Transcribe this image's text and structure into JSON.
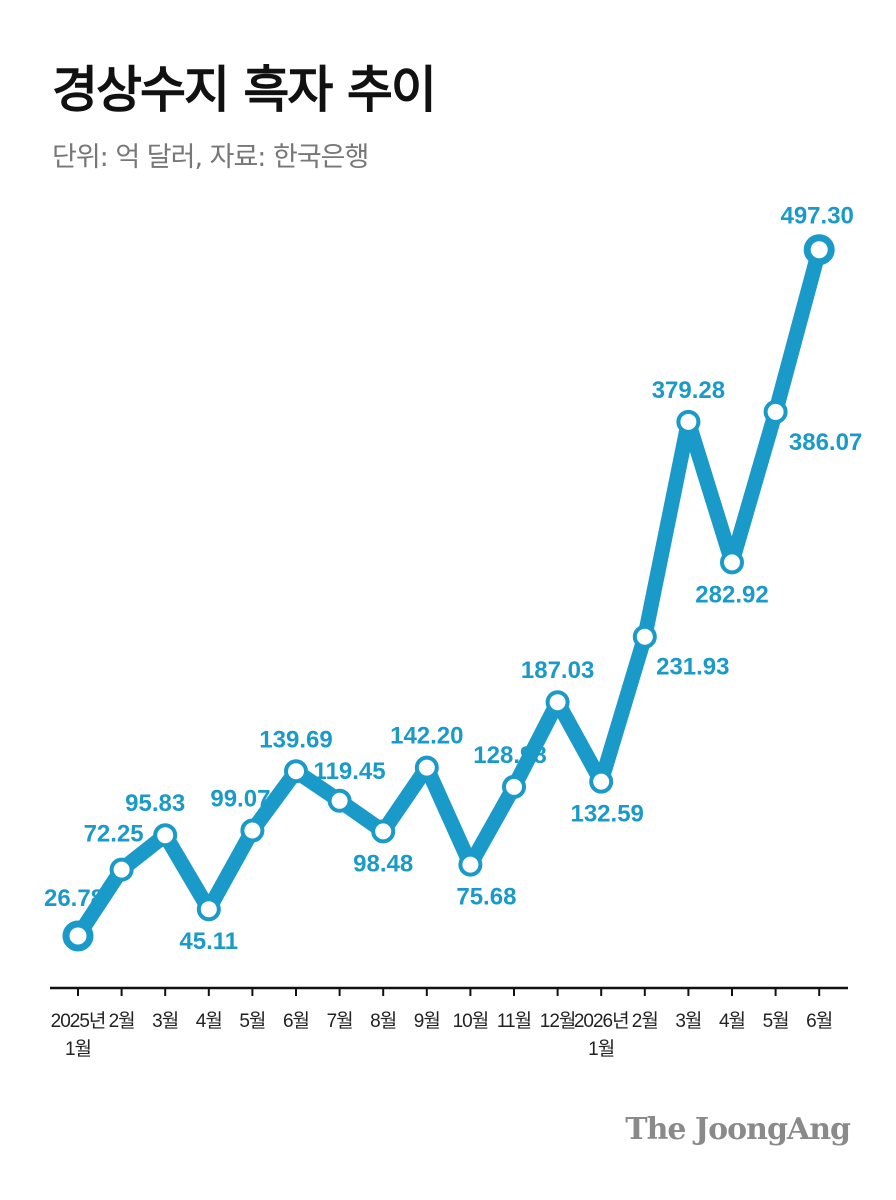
{
  "title": "경상수지 흑자 추이",
  "subtitle": "단위: 억 달러, 자료: 한국은행",
  "brand": "The JoongAng",
  "colors": {
    "line": "#1a9ac8",
    "text": "#111111",
    "axis": "#111111"
  },
  "chart_data": {
    "type": "line",
    "title": "경상수지 흑자 추이",
    "subtitle": "단위: 억 달러, 자료: 한국은행",
    "categories": [
      [
        "2025년",
        "1월"
      ],
      [
        "2월"
      ],
      [
        "3월"
      ],
      [
        "4월"
      ],
      [
        "5월"
      ],
      [
        "6월"
      ],
      [
        "7월"
      ],
      [
        "8월"
      ],
      [
        "9월"
      ],
      [
        "10월"
      ],
      [
        "11월"
      ],
      [
        "12월"
      ],
      [
        "2026년",
        "1월"
      ],
      [
        "2월"
      ],
      [
        "3월"
      ],
      [
        "4월"
      ],
      [
        "5월"
      ],
      [
        "6월"
      ]
    ],
    "series": [
      {
        "values": [
          26.78,
          72.25,
          95.83,
          45.11,
          99.07,
          139.69,
          119.45,
          98.48,
          142.2,
          75.68,
          128.98,
          187.03,
          132.59,
          231.93,
          379.28,
          282.92,
          386.07,
          497.3
        ],
        "labels": [
          "26.78",
          "72.25",
          "95.83",
          "45.11",
          "99.07",
          "139.69",
          "119.45",
          "98.48",
          "142.20",
          "75.68",
          "128.98",
          "187.03",
          "132.59",
          "231.93",
          "379.28",
          "282.92",
          "386.07",
          "497.30"
        ]
      }
    ],
    "grid": false,
    "legend": "none"
  }
}
